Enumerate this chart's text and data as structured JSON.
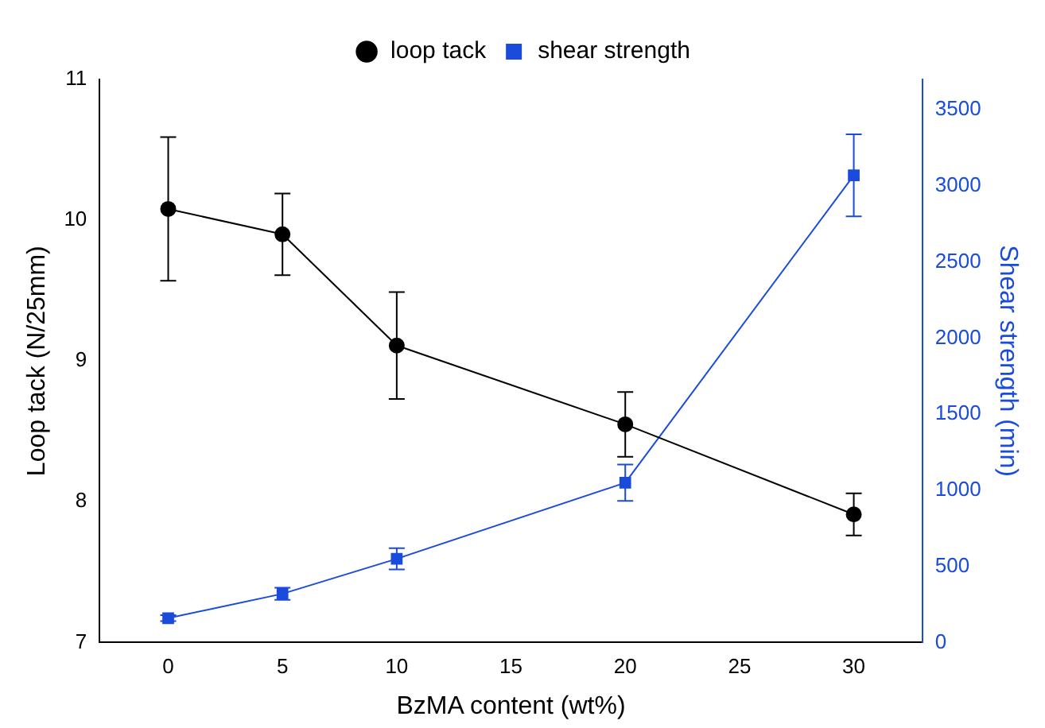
{
  "chart_data": {
    "type": "line",
    "xlabel": "BzMA content (wt%)",
    "ylabel": "Loop tack (N/25mm)",
    "y2label": "Shear strength (min)",
    "x": [
      0,
      5,
      10,
      20,
      30
    ],
    "xlim": [
      -3,
      33
    ],
    "xticks": [
      0,
      5,
      10,
      15,
      20,
      25,
      30
    ],
    "ylim": [
      7,
      11
    ],
    "yticks": [
      7,
      8,
      9,
      10,
      11
    ],
    "y2lim": [
      0,
      3700
    ],
    "y2ticks": [
      0,
      500,
      1000,
      1500,
      2000,
      2500,
      3000,
      3500
    ],
    "series": [
      {
        "name": "loop tack",
        "color": "#000000",
        "marker": "circle",
        "values": [
          10.08,
          9.9,
          9.11,
          8.55,
          7.91
        ],
        "errors": [
          0.51,
          0.29,
          0.38,
          0.23,
          0.15
        ]
      },
      {
        "name": "shear strength",
        "color": "#1a4bdb",
        "marker": "square",
        "axis": "y2",
        "values": [
          160,
          320,
          550,
          1050,
          3070
        ],
        "errors": [
          20,
          40,
          70,
          120,
          270
        ]
      }
    ],
    "legend": "top",
    "grid": false,
    "line_style": "solid"
  }
}
